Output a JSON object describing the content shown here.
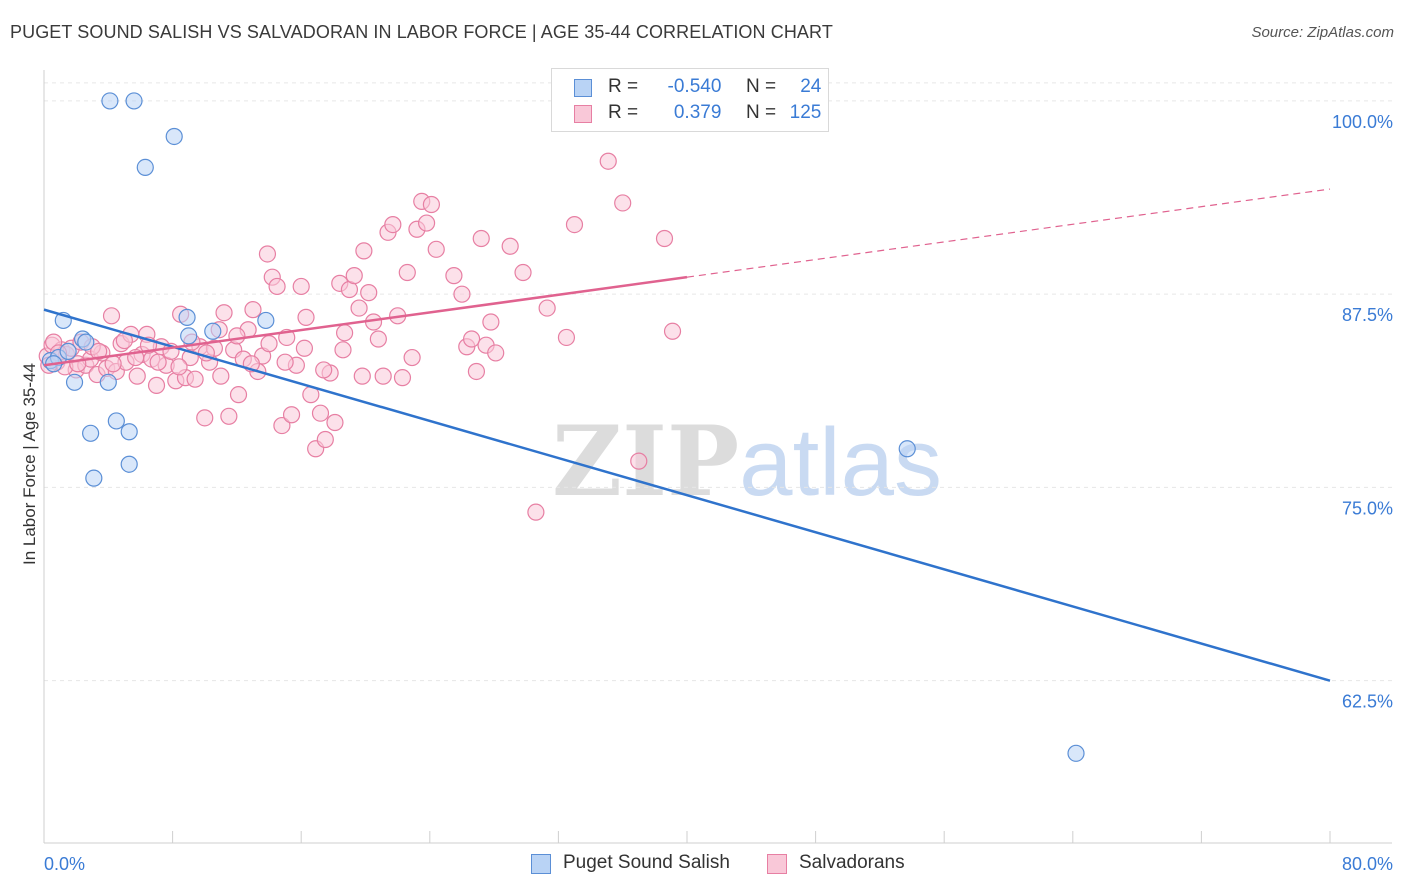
{
  "title": "PUGET SOUND SALISH VS SALVADORAN IN LABOR FORCE | AGE 35-44 CORRELATION CHART",
  "source": "Source: ZipAtlas.com",
  "watermark": {
    "zip": "ZIP",
    "atlas": "atlas"
  },
  "legend": {
    "rows": [
      {
        "r_label": "R =",
        "r_value": "-0.540",
        "n_label": "N =",
        "n_value": "24"
      },
      {
        "r_label": "R =",
        "r_value": "0.379",
        "n_label": "N =",
        "n_value": "125"
      }
    ]
  },
  "bottom_legend": [
    "Puget Sound Salish",
    "Salvadorans"
  ],
  "colors": {
    "blue_fill": "#b9d3f5",
    "blue_stroke": "#5b8fd6",
    "blue_line": "#2f73cc",
    "pink_fill": "#f9c8d8",
    "pink_stroke": "#e77fa3",
    "pink_line": "#e0628f",
    "tick_label": "#3a7bd5",
    "grid": "#e6e6e6"
  },
  "chart_data": {
    "type": "scatter",
    "title": "PUGET SOUND SALISH VS SALVADORAN IN LABOR FORCE | AGE 35-44 CORRELATION CHART",
    "xlabel": "",
    "ylabel": "In Labor Force | Age 35-44",
    "xlim": [
      0,
      80
    ],
    "ylim": [
      52,
      102
    ],
    "x_tick_labels": [
      "0.0%",
      "80.0%"
    ],
    "y_ticks": [
      62.5,
      75.0,
      87.5,
      100.0
    ],
    "y_tick_labels": [
      "62.5%",
      "75.0%",
      "87.5%",
      "100.0%"
    ],
    "grid": true,
    "legend_position": "top-center",
    "series": [
      {
        "name": "Puget Sound Salish",
        "color": "#5b8fd6",
        "r": -0.54,
        "n": 24,
        "trend": {
          "x": [
            0,
            80
          ],
          "y": [
            86.5,
            62.5
          ],
          "dashed_from_x": null
        },
        "points": [
          [
            0.4,
            83.2
          ],
          [
            1.2,
            85.8
          ],
          [
            1.9,
            81.8
          ],
          [
            2.4,
            84.6
          ],
          [
            2.9,
            78.5
          ],
          [
            3.1,
            75.6
          ],
          [
            4.0,
            81.8
          ],
          [
            4.5,
            79.3
          ],
          [
            4.1,
            100.0
          ],
          [
            5.6,
            100.0
          ],
          [
            6.3,
            95.7
          ],
          [
            8.1,
            97.7
          ],
          [
            5.3,
            78.6
          ],
          [
            5.3,
            76.5
          ],
          [
            8.9,
            86.0
          ],
          [
            10.5,
            85.1
          ],
          [
            13.8,
            85.8
          ],
          [
            9.0,
            84.8
          ],
          [
            0.9,
            83.4
          ],
          [
            1.5,
            83.8
          ],
          [
            2.6,
            84.4
          ],
          [
            53.7,
            77.5
          ],
          [
            64.2,
            57.8
          ],
          [
            0.6,
            83.0
          ]
        ]
      },
      {
        "name": "Salvadorans",
        "color": "#e77fa3",
        "r": 0.379,
        "n": 125,
        "trend": {
          "x": [
            0,
            80
          ],
          "y": [
            82.9,
            94.3
          ],
          "dashed_from_x": 40
        },
        "points": [
          [
            0.2,
            83.5
          ],
          [
            0.5,
            84.2
          ],
          [
            0.8,
            83.1
          ],
          [
            1.1,
            83.9
          ],
          [
            1.4,
            83.6
          ],
          [
            1.7,
            84.0
          ],
          [
            2.0,
            82.6
          ],
          [
            2.3,
            84.4
          ],
          [
            2.6,
            82.9
          ],
          [
            2.9,
            83.3
          ],
          [
            3.3,
            82.3
          ],
          [
            3.6,
            83.7
          ],
          [
            3.9,
            82.7
          ],
          [
            4.2,
            86.1
          ],
          [
            4.5,
            82.5
          ],
          [
            4.8,
            84.3
          ],
          [
            5.1,
            83.1
          ],
          [
            5.4,
            84.9
          ],
          [
            5.8,
            82.2
          ],
          [
            6.1,
            83.6
          ],
          [
            6.4,
            84.9
          ],
          [
            6.7,
            83.3
          ],
          [
            7.0,
            81.6
          ],
          [
            7.3,
            84.1
          ],
          [
            7.6,
            82.9
          ],
          [
            7.9,
            83.8
          ],
          [
            8.2,
            81.9
          ],
          [
            8.5,
            86.2
          ],
          [
            8.8,
            82.1
          ],
          [
            9.1,
            83.4
          ],
          [
            9.4,
            82.0
          ],
          [
            9.7,
            84.1
          ],
          [
            10.0,
            79.5
          ],
          [
            10.3,
            83.1
          ],
          [
            10.6,
            84.0
          ],
          [
            10.9,
            85.2
          ],
          [
            11.2,
            86.3
          ],
          [
            11.5,
            79.6
          ],
          [
            11.8,
            83.9
          ],
          [
            12.1,
            81.0
          ],
          [
            12.4,
            83.3
          ],
          [
            12.7,
            85.2
          ],
          [
            13.0,
            86.5
          ],
          [
            13.3,
            82.5
          ],
          [
            13.6,
            83.5
          ],
          [
            13.9,
            90.1
          ],
          [
            14.2,
            88.6
          ],
          [
            14.5,
            88.0
          ],
          [
            14.8,
            79.0
          ],
          [
            15.1,
            84.7
          ],
          [
            15.4,
            79.7
          ],
          [
            15.7,
            82.9
          ],
          [
            16.0,
            88.0
          ],
          [
            16.3,
            86.0
          ],
          [
            16.6,
            81.0
          ],
          [
            16.9,
            77.5
          ],
          [
            17.2,
            79.8
          ],
          [
            17.5,
            78.1
          ],
          [
            17.8,
            82.4
          ],
          [
            18.1,
            79.2
          ],
          [
            18.4,
            88.2
          ],
          [
            18.7,
            85.0
          ],
          [
            19.0,
            87.8
          ],
          [
            19.3,
            88.7
          ],
          [
            19.6,
            86.6
          ],
          [
            19.9,
            90.3
          ],
          [
            20.2,
            87.6
          ],
          [
            20.5,
            85.7
          ],
          [
            20.8,
            84.6
          ],
          [
            21.1,
            82.2
          ],
          [
            21.4,
            91.5
          ],
          [
            21.7,
            92.0
          ],
          [
            22.0,
            86.1
          ],
          [
            22.3,
            82.1
          ],
          [
            22.6,
            88.9
          ],
          [
            22.9,
            83.4
          ],
          [
            23.2,
            91.7
          ],
          [
            23.5,
            93.5
          ],
          [
            23.8,
            92.1
          ],
          [
            24.1,
            93.3
          ],
          [
            24.4,
            90.4
          ],
          [
            25.5,
            88.7
          ],
          [
            26.0,
            87.5
          ],
          [
            26.3,
            84.1
          ],
          [
            26.6,
            84.6
          ],
          [
            26.9,
            82.5
          ],
          [
            27.2,
            91.1
          ],
          [
            27.5,
            84.2
          ],
          [
            27.8,
            85.7
          ],
          [
            28.1,
            83.7
          ],
          [
            29.0,
            90.6
          ],
          [
            29.8,
            88.9
          ],
          [
            30.6,
            73.4
          ],
          [
            31.3,
            86.6
          ],
          [
            32.5,
            84.7
          ],
          [
            33.0,
            92.0
          ],
          [
            35.1,
            96.1
          ],
          [
            36.0,
            93.4
          ],
          [
            37.0,
            76.7
          ],
          [
            38.6,
            91.1
          ],
          [
            39.1,
            85.1
          ],
          [
            0.3,
            82.9
          ],
          [
            0.6,
            84.4
          ],
          [
            0.9,
            83.7
          ],
          [
            1.3,
            82.8
          ],
          [
            2.1,
            83.0
          ],
          [
            3.0,
            84.1
          ],
          [
            3.4,
            83.8
          ],
          [
            4.3,
            83.0
          ],
          [
            5.0,
            84.5
          ],
          [
            5.7,
            83.4
          ],
          [
            6.5,
            84.2
          ],
          [
            7.1,
            83.1
          ],
          [
            8.4,
            82.8
          ],
          [
            9.2,
            84.4
          ],
          [
            10.1,
            83.7
          ],
          [
            11.0,
            82.2
          ],
          [
            12.0,
            84.8
          ],
          [
            12.9,
            83.0
          ],
          [
            14.0,
            84.3
          ],
          [
            15.0,
            83.1
          ],
          [
            16.2,
            84.0
          ],
          [
            17.4,
            82.6
          ],
          [
            18.6,
            83.9
          ],
          [
            19.8,
            82.2
          ]
        ]
      }
    ]
  }
}
